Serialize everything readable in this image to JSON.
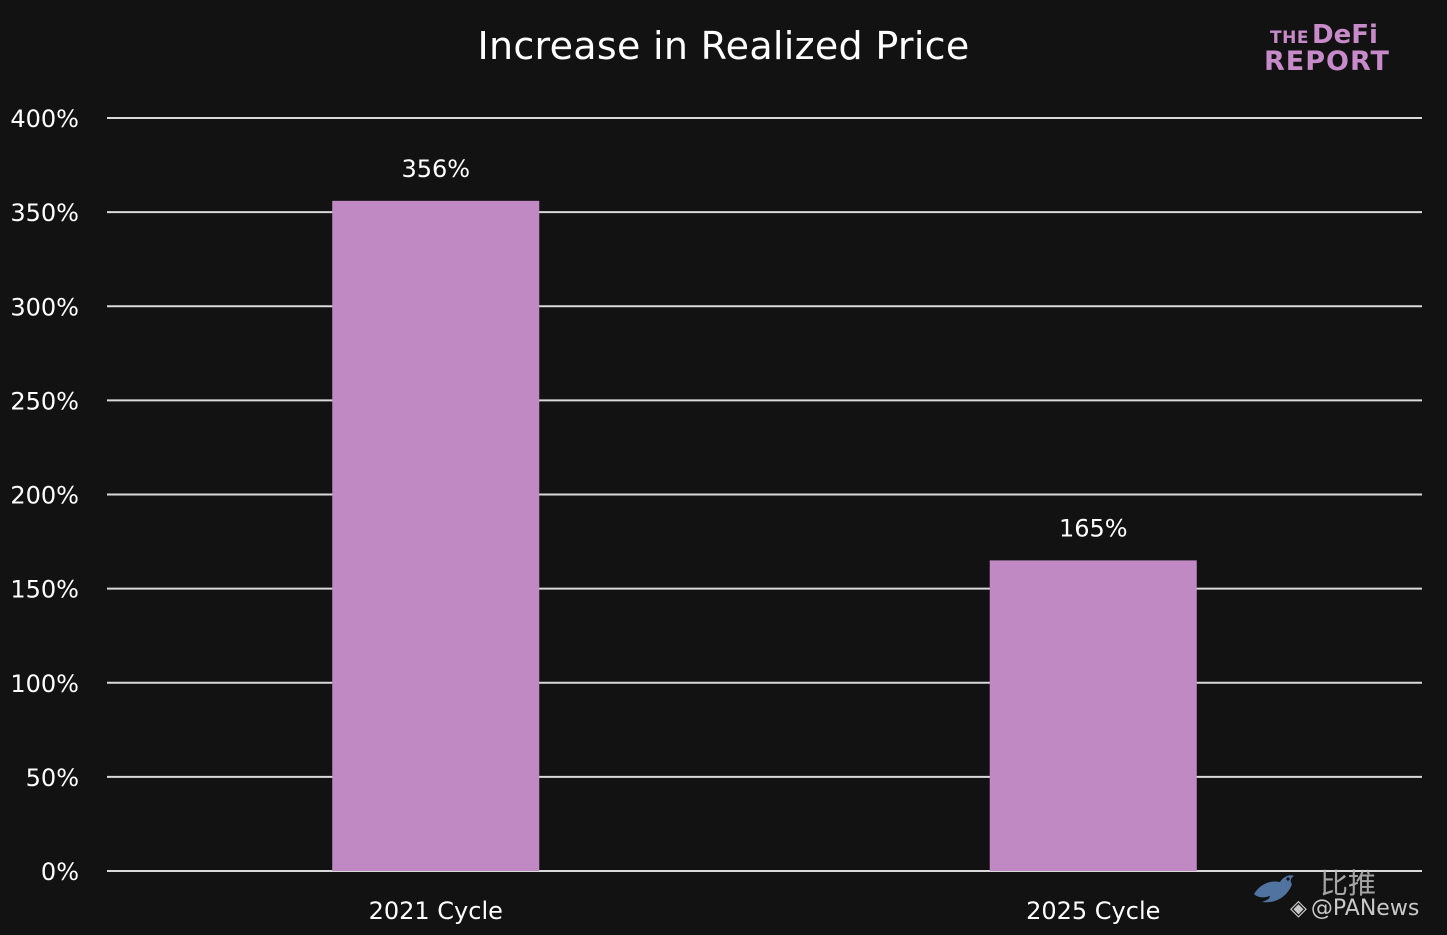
{
  "chart_data": {
    "type": "bar",
    "title": "Increase in Realized Price",
    "categories": [
      "2021 Cycle",
      "2025 Cycle"
    ],
    "values": [
      356,
      165
    ],
    "data_labels": [
      "356%",
      "165%"
    ],
    "y_ticks": [
      0,
      50,
      100,
      150,
      200,
      250,
      300,
      350,
      400
    ],
    "y_tick_labels": [
      "0%",
      "50%",
      "100%",
      "150%",
      "200%",
      "250%",
      "300%",
      "350%",
      "400%"
    ],
    "ylim": [
      0,
      400
    ],
    "xlabel": "",
    "ylabel": "",
    "grid": true,
    "legend": "none",
    "colors": {
      "bar": "#c189c4",
      "grid": "#d9d9d9",
      "background": "#121212",
      "text": "#ffffff"
    }
  },
  "branding": {
    "logo_the": "THE",
    "logo_defi": "DeFi",
    "logo_report": "REPORT",
    "logo_color": "#c78bc9"
  },
  "watermark": {
    "cn_text": "比推",
    "diamond": "◈",
    "handle": "@PANews"
  }
}
